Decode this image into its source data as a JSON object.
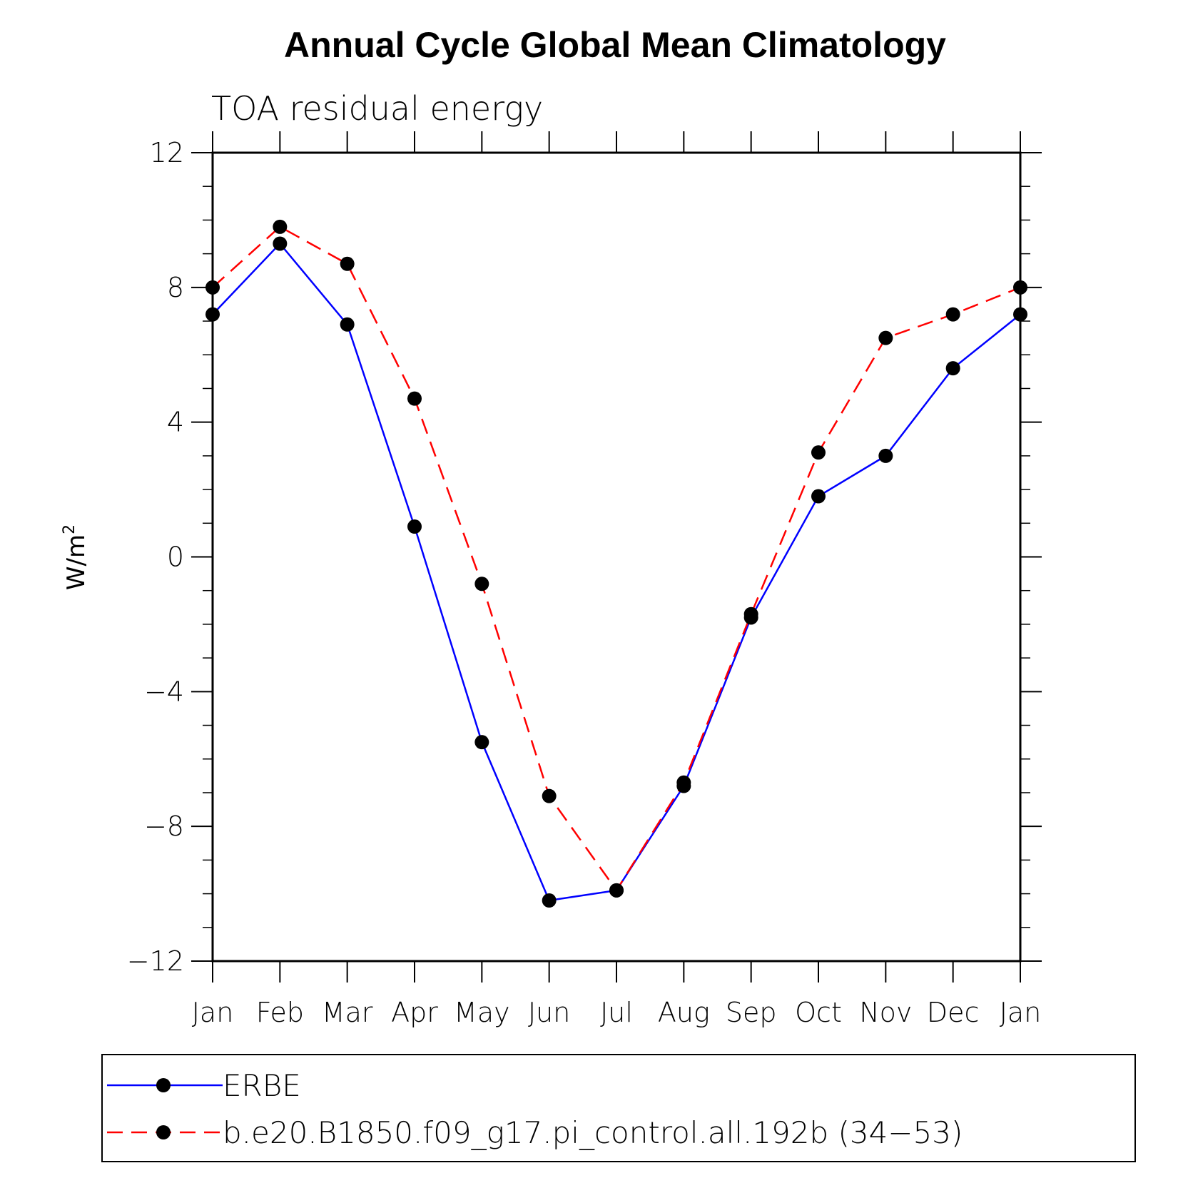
{
  "chart_data": {
    "type": "line",
    "title": "Annual Cycle Global Mean Climatology",
    "subtitle": "TOA residual energy",
    "xlabel": "",
    "ylabel": "W/m",
    "ylabel_superscript": "2",
    "ylim": [
      -12,
      12
    ],
    "yticks": [
      "12",
      "8",
      "4",
      "0",
      "−4",
      "−8",
      "−12"
    ],
    "ytick_values": [
      12,
      8,
      4,
      0,
      -4,
      -8,
      -12
    ],
    "categories": [
      "Jan",
      "Feb",
      "Mar",
      "Apr",
      "May",
      "Jun",
      "Jul",
      "Aug",
      "Sep",
      "Oct",
      "Nov",
      "Dec",
      "Jan"
    ],
    "grid": false,
    "legend_position": "bottom",
    "series": [
      {
        "name": "ERBE",
        "color": "#0000ff",
        "style": "solid",
        "marker": "filled-circle",
        "values": [
          7.2,
          9.3,
          6.9,
          0.9,
          -5.5,
          -10.2,
          -9.9,
          -6.8,
          -1.8,
          1.8,
          3.0,
          5.6,
          7.2
        ]
      },
      {
        "name": "b.e20.B1850.f09_g17.pi_control.all.192b (34−53)",
        "color": "#ff0000",
        "style": "dashed",
        "marker": "filled-circle",
        "values": [
          8.0,
          9.8,
          8.7,
          4.7,
          -0.8,
          -7.1,
          -9.9,
          -6.7,
          -1.7,
          3.1,
          6.5,
          7.2,
          8.0
        ]
      }
    ]
  }
}
